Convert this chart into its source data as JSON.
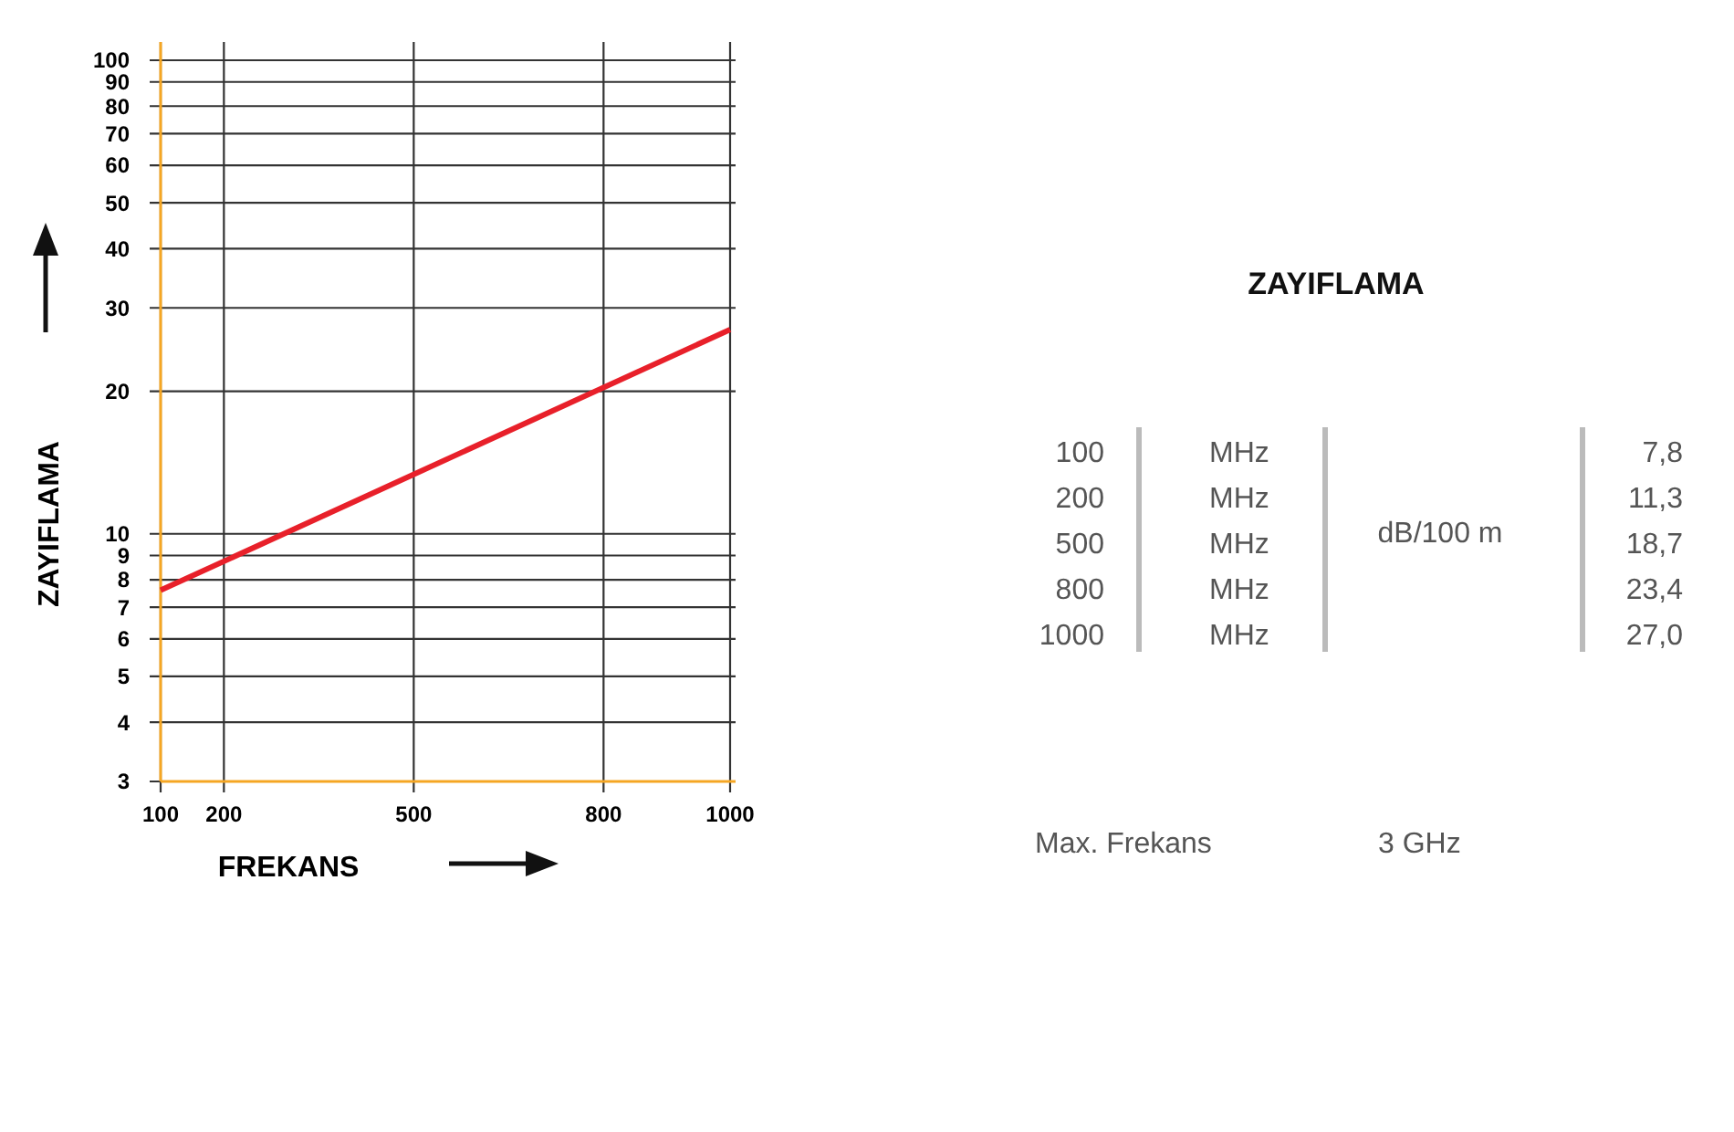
{
  "chart_data": [
    {
      "type": "line",
      "xlabel": "FREKANS",
      "ylabel": "ZAYIFLAMA",
      "x": [
        100,
        1000
      ],
      "series": [
        {
          "color": "#e8202a",
          "values": [
            7.6,
            27
          ]
        }
      ],
      "xlim": [
        100,
        1000
      ],
      "xticks": [
        100,
        200,
        500,
        800,
        1000
      ],
      "ylim": [
        3,
        100
      ],
      "yticks": [
        3,
        4,
        5,
        6,
        7,
        8,
        9,
        10,
        20,
        30,
        40,
        50,
        60,
        70,
        80,
        90,
        100
      ],
      "log": "y",
      "grid": true,
      "marker": "none",
      "line_style": "solid"
    },
    {
      "type": "other",
      "title": "ZAYIFLAMA",
      "annotations": [
        "100",
        "200",
        "500",
        "800",
        "1000",
        "MHz",
        "MHz",
        "MHz",
        "MHz",
        "MHz",
        "dB/100 m",
        "7,8",
        "11,3",
        "18,7",
        "23,4",
        "27,0",
        "Max. Frekans",
        "3 GHz"
      ]
    }
  ]
}
